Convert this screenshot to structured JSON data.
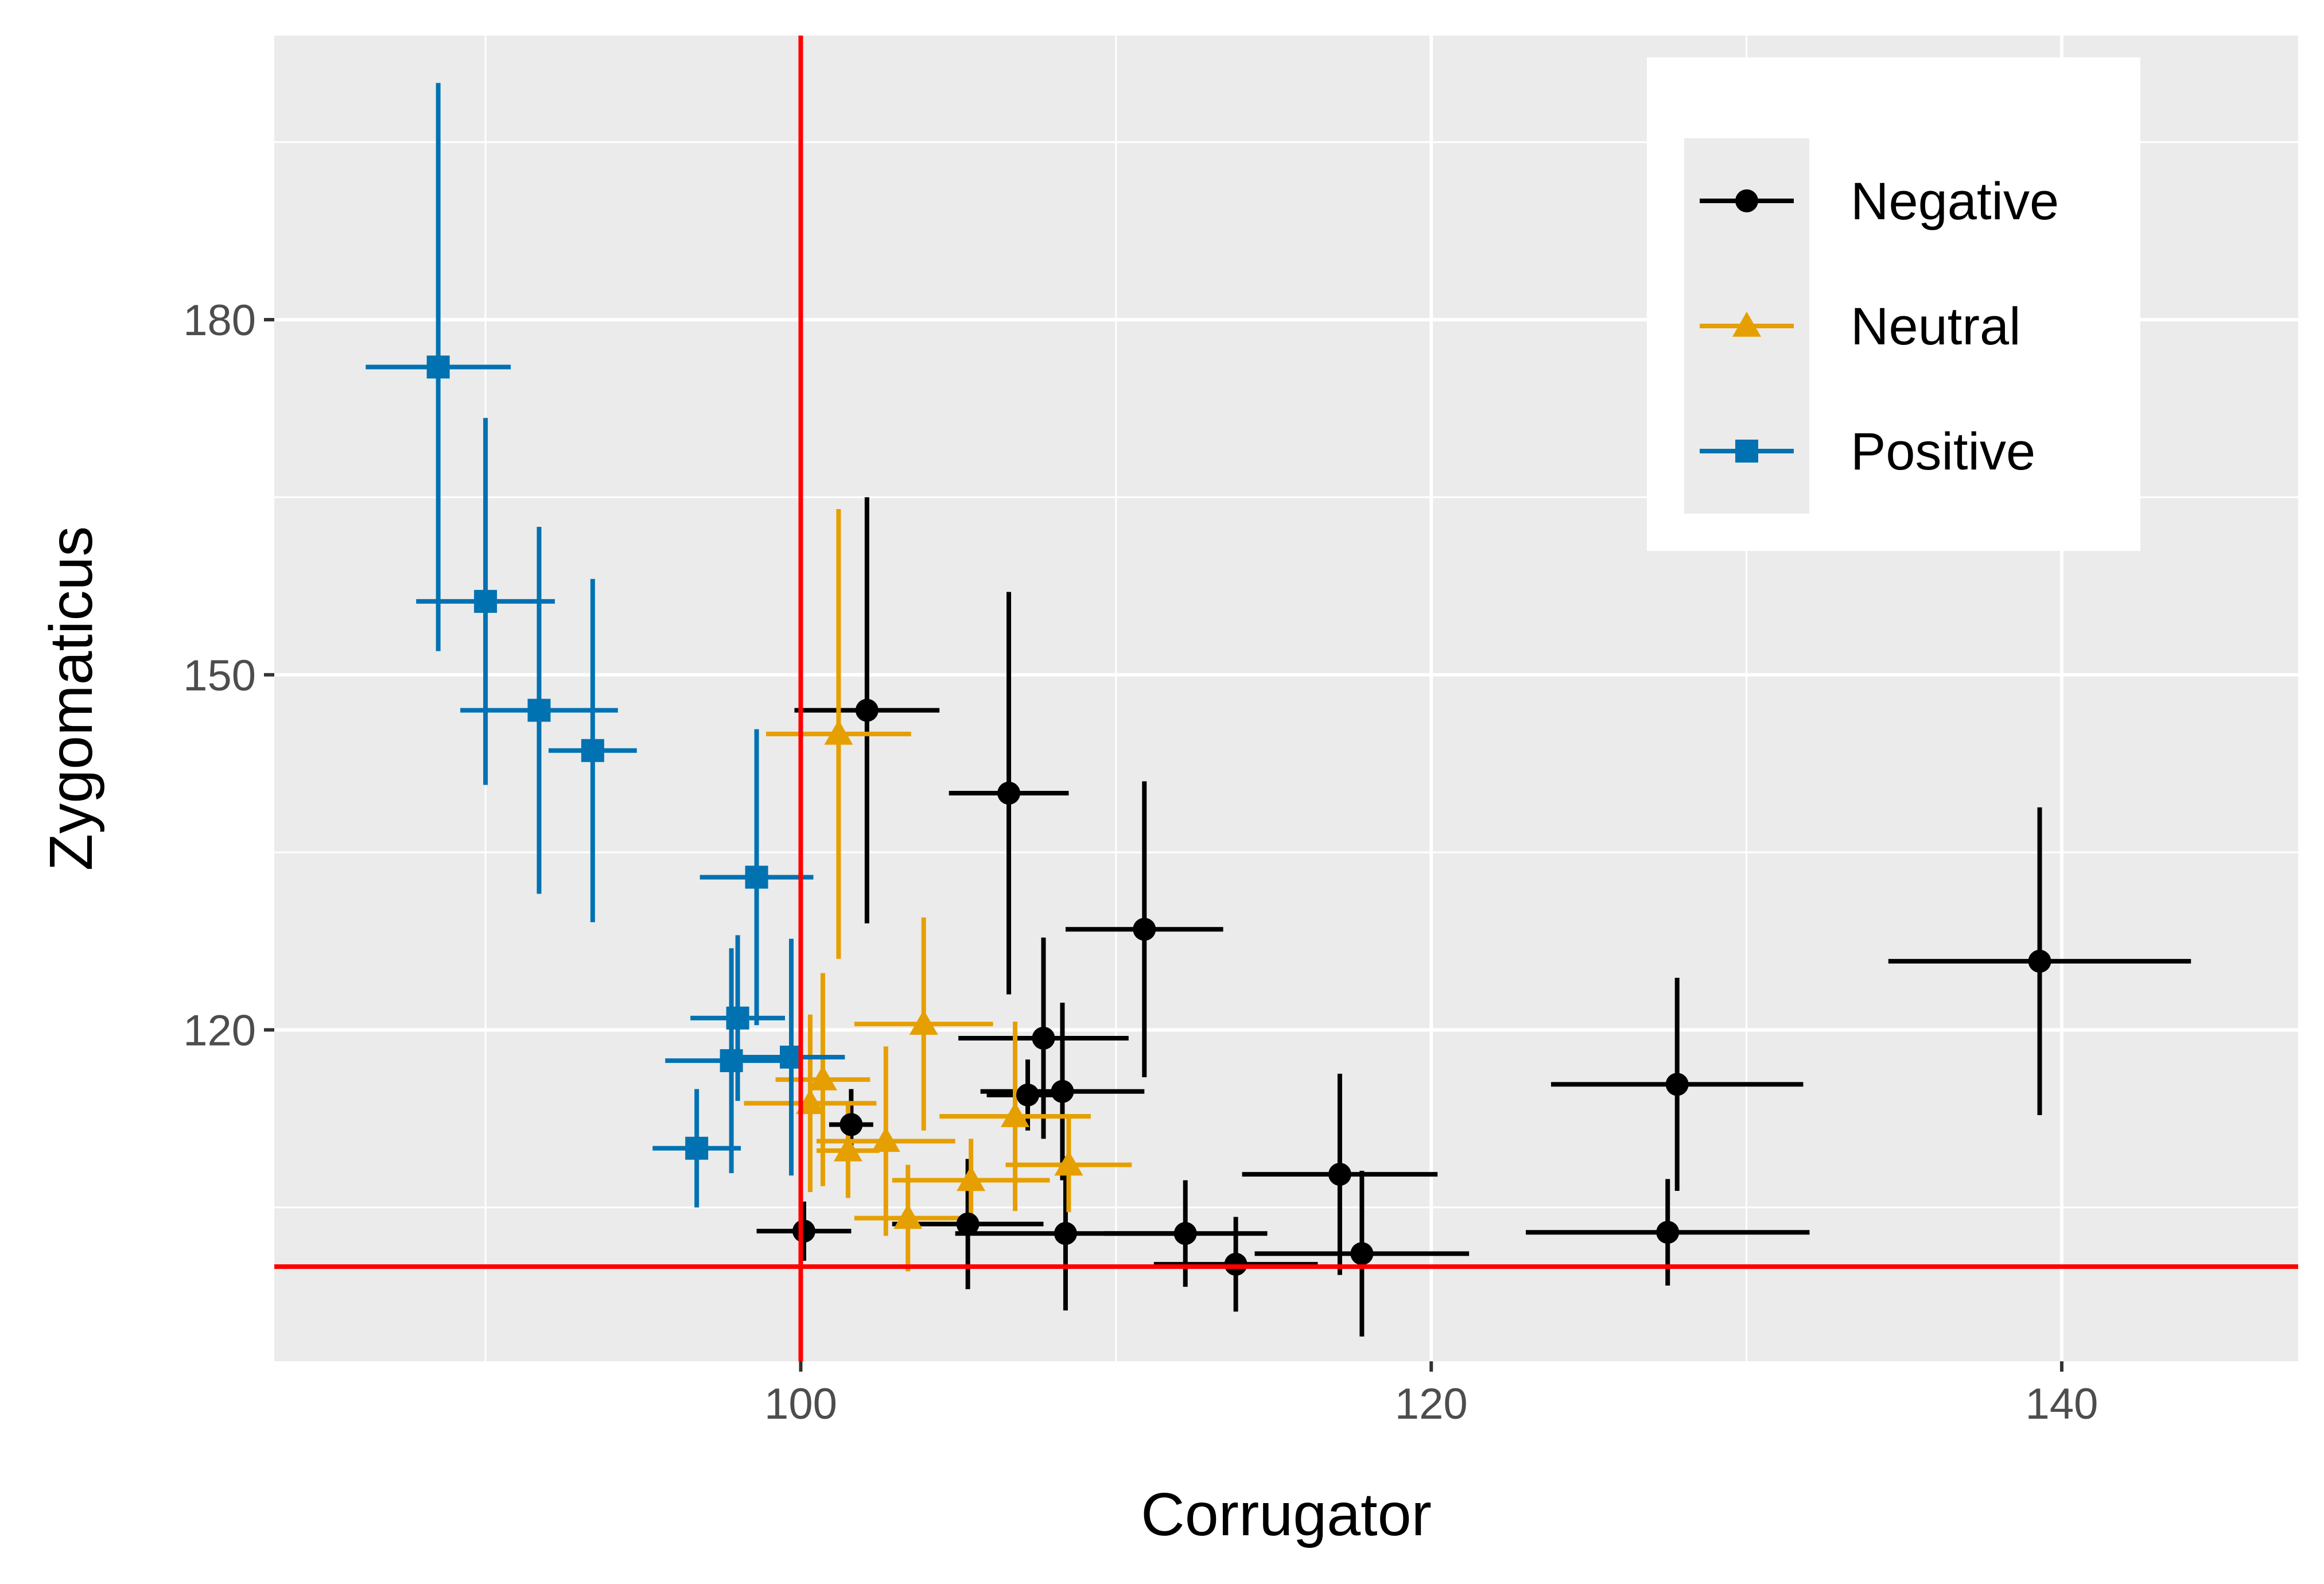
{
  "chart_data": {
    "type": "scatter",
    "title": "",
    "xlabel": "Corrugator",
    "ylabel": "Zygomaticus",
    "xlim": [
      83.3,
      147.5
    ],
    "ylim": [
      92,
      204
    ],
    "xticks": [
      100,
      120,
      140
    ],
    "yticks": [
      120,
      150,
      180
    ],
    "x_minor_gridlines": [
      90,
      110,
      130
    ],
    "y_minor_gridlines": [
      105,
      135,
      165,
      195
    ],
    "grid": true,
    "background": "#EBEBEB",
    "reference_lines": {
      "x": 100,
      "y": 100,
      "color": "#FF0000"
    },
    "legend": {
      "position": "top-right"
    },
    "series": [
      {
        "name": "Negative",
        "color": "#000000",
        "marker": "circle",
        "points": [
          {
            "x": 102.1,
            "y": 147.0,
            "xerr": 2.3,
            "yerr": 18.0
          },
          {
            "x": 106.6,
            "y": 140.0,
            "xerr": 1.9,
            "yerr": 17.0
          },
          {
            "x": 110.9,
            "y": 128.5,
            "xerr": 2.5,
            "yerr": 12.5
          },
          {
            "x": 139.3,
            "y": 125.8,
            "xerr": 4.8,
            "yerr": 13.0
          },
          {
            "x": 107.7,
            "y": 119.3,
            "xerr": 2.7,
            "yerr": 8.5
          },
          {
            "x": 108.3,
            "y": 114.8,
            "xerr": 2.6,
            "yerr": 7.5
          },
          {
            "x": 107.2,
            "y": 114.5,
            "xerr": 1.3,
            "yerr": 3.0
          },
          {
            "x": 127.8,
            "y": 115.4,
            "xerr": 4.0,
            "yerr": 9.0
          },
          {
            "x": 101.6,
            "y": 112.0,
            "xerr": 0.7,
            "yerr": 3.0
          },
          {
            "x": 117.1,
            "y": 107.8,
            "xerr": 3.1,
            "yerr": 8.5
          },
          {
            "x": 100.1,
            "y": 103.0,
            "xerr": 1.5,
            "yerr": 2.5
          },
          {
            "x": 105.3,
            "y": 103.6,
            "xerr": 2.4,
            "yerr": 5.5
          },
          {
            "x": 108.4,
            "y": 102.8,
            "xerr": 3.5,
            "yerr": 6.5
          },
          {
            "x": 112.2,
            "y": 102.8,
            "xerr": 2.6,
            "yerr": 4.5
          },
          {
            "x": 113.8,
            "y": 100.2,
            "xerr": 2.6,
            "yerr": 4.0
          },
          {
            "x": 117.8,
            "y": 101.1,
            "xerr": 3.4,
            "yerr": 7.0
          },
          {
            "x": 127.5,
            "y": 102.9,
            "xerr": 4.5,
            "yerr": 4.5
          }
        ]
      },
      {
        "name": "Neutral",
        "color": "#E69F00",
        "marker": "triangle",
        "points": [
          {
            "x": 101.2,
            "y": 145.0,
            "xerr": 2.3,
            "yerr": 19.0
          },
          {
            "x": 103.9,
            "y": 120.5,
            "xerr": 2.2,
            "yerr": 9.0
          },
          {
            "x": 100.7,
            "y": 115.8,
            "xerr": 1.5,
            "yerr": 9.0
          },
          {
            "x": 100.3,
            "y": 113.8,
            "xerr": 2.1,
            "yerr": 7.5
          },
          {
            "x": 106.8,
            "y": 112.7,
            "xerr": 2.4,
            "yerr": 8.0
          },
          {
            "x": 101.5,
            "y": 109.8,
            "xerr": 1.0,
            "yerr": 4.0
          },
          {
            "x": 102.7,
            "y": 110.6,
            "xerr": 2.2,
            "yerr": 8.0
          },
          {
            "x": 108.5,
            "y": 108.6,
            "xerr": 2.0,
            "yerr": 4.0
          },
          {
            "x": 105.4,
            "y": 107.3,
            "xerr": 2.5,
            "yerr": 3.5
          },
          {
            "x": 103.4,
            "y": 104.1,
            "xerr": 1.7,
            "yerr": 4.5
          }
        ]
      },
      {
        "name": "Positive",
        "color": "#0072B2",
        "marker": "square",
        "points": [
          {
            "x": 88.5,
            "y": 176.0,
            "xerr": 2.3,
            "yerr": 24.0
          },
          {
            "x": 90.0,
            "y": 156.2,
            "xerr": 2.2,
            "yerr": 15.5
          },
          {
            "x": 91.7,
            "y": 147.0,
            "xerr": 2.5,
            "yerr": 15.5
          },
          {
            "x": 93.4,
            "y": 143.6,
            "xerr": 1.4,
            "yerr": 14.5
          },
          {
            "x": 98.6,
            "y": 132.9,
            "xerr": 1.8,
            "yerr": 12.5
          },
          {
            "x": 98.0,
            "y": 121.0,
            "xerr": 1.5,
            "yerr": 7.0
          },
          {
            "x": 97.8,
            "y": 117.4,
            "xerr": 2.1,
            "yerr": 9.5
          },
          {
            "x": 99.7,
            "y": 117.7,
            "xerr": 1.7,
            "yerr": 10.0
          },
          {
            "x": 96.7,
            "y": 110.0,
            "xerr": 1.4,
            "yerr": 5.0
          }
        ]
      }
    ]
  }
}
